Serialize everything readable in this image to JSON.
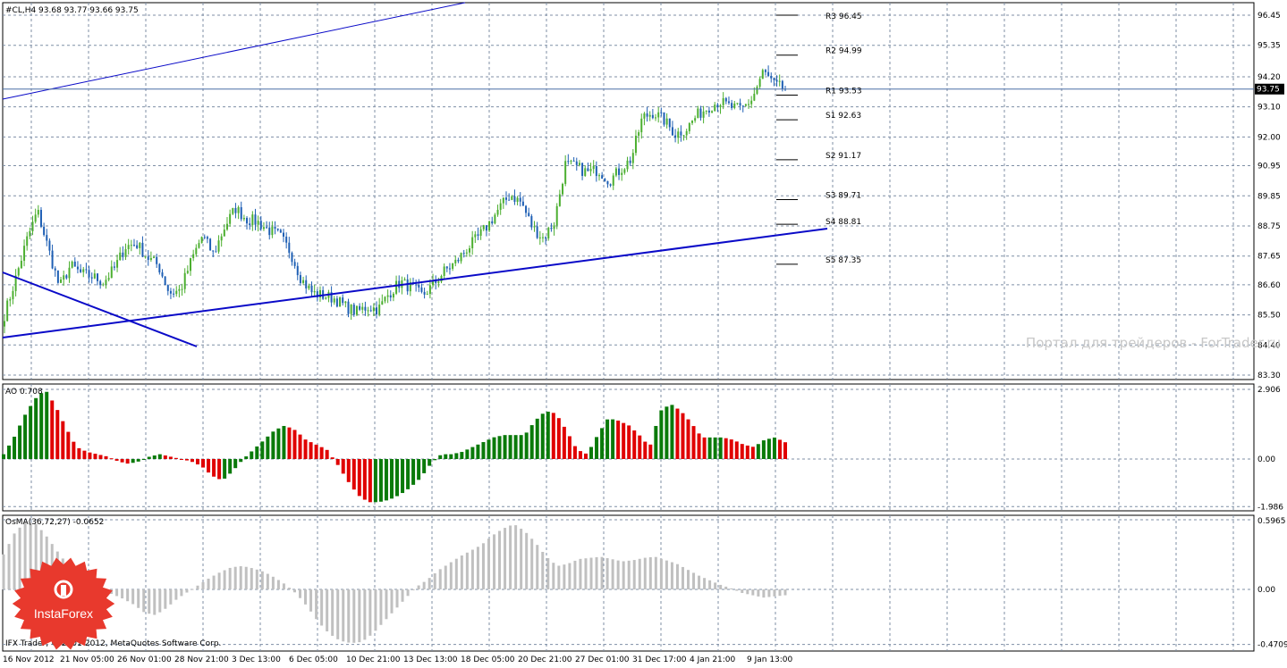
{
  "colors": {
    "background": "#ffffff",
    "grid": "#7f8fa6",
    "bull_candle": "#4caf30",
    "bear_candle": "#1e5fb4",
    "trendline": "#0a0ac8",
    "price_line": "#4a6fa5",
    "ao_up": "#0a7a0a",
    "ao_down": "#e00000",
    "osma": "#c0c0c0",
    "logo_red": "#e8392d"
  },
  "header": {
    "symbol_line": "#CL,H4  93.68 93.77 93.66 93.75",
    "ao_label": "AO 0.708",
    "osma_label": "OsMA(36,72,27) -0.0652",
    "copyright": "IFX Trader, © 2001-2012, MetaQuotes Software Corp.",
    "watermark": "Портал для трейдеров - ForTrader.ru",
    "logo_text": "InstaForex",
    "current_price": "93.75"
  },
  "chart_data": [
    {
      "type": "candlestick",
      "title": "#CL,H4",
      "ylim": [
        83.3,
        96.45
      ],
      "price_ticks": [
        "96.45",
        "95.35",
        "94.20",
        "93.10",
        "92.00",
        "90.95",
        "89.85",
        "88.75",
        "87.65",
        "86.60",
        "85.50",
        "84.40",
        "83.30"
      ],
      "x_tick_labels": [
        "16 Nov 2012",
        "21 Nov 05:00",
        "26 Nov 01:00",
        "28 Nov 21:00",
        "3 Dec 13:00",
        "6 Dec 05:00",
        "10 Dec 21:00",
        "13 Dec 13:00",
        "18 Dec 05:00",
        "20 Dec 21:00",
        "27 Dec 01:00",
        "31 Dec 17:00",
        "4 Jan 21:00",
        "9 Jan 13:00"
      ],
      "close_path": [
        85.5,
        86.8,
        88.2,
        89.3,
        87.9,
        86.5,
        87.3,
        87.0,
        86.9,
        86.7,
        87.2,
        88.0,
        88.1,
        87.6,
        87.3,
        86.3,
        86.4,
        87.5,
        88.4,
        87.7,
        88.7,
        89.4,
        89.0,
        88.9,
        88.6,
        88.4,
        87.8,
        86.8,
        86.3,
        86.2,
        86.1,
        85.8,
        85.6,
        85.8,
        85.7,
        86.3,
        86.7,
        86.5,
        86.2,
        86.6,
        87.1,
        87.4,
        87.9,
        88.3,
        88.8,
        89.4,
        89.9,
        89.6,
        88.7,
        88.3,
        88.9,
        91.0,
        90.9,
        90.7,
        90.8,
        90.4,
        90.8,
        91.2,
        92.7,
        92.9,
        92.6,
        92.1,
        92.3,
        92.8,
        93.1,
        93.3,
        93.1,
        93.0,
        93.4,
        94.4,
        93.9,
        93.75
      ],
      "pivots": [
        {
          "label": "R3",
          "value": 96.45,
          "text": "R3 96.45"
        },
        {
          "label": "R2",
          "value": 94.99,
          "text": "R2 94.99"
        },
        {
          "label": "R1",
          "value": 93.53,
          "text": "R1 93.53"
        },
        {
          "label": "S1",
          "value": 92.63,
          "text": "S1 92.63"
        },
        {
          "label": "S2",
          "value": 91.17,
          "text": "S2 91.17"
        },
        {
          "label": "S3",
          "value": 89.71,
          "text": "S3 89.71"
        },
        {
          "label": "S4",
          "value": 88.81,
          "text": "S4 88.81"
        },
        {
          "label": "S5",
          "value": 87.35,
          "text": "S5 87.35"
        }
      ]
    },
    {
      "type": "bar",
      "title": "AO",
      "ylim": [
        -1.986,
        2.906
      ],
      "ticks": [
        "2.906",
        "0.00",
        "-1.986"
      ],
      "path": [
        0.2,
        0.9,
        1.8,
        2.5,
        2.9,
        2.2,
        1.3,
        0.5,
        0.3,
        0.2,
        0.1,
        -0.1,
        -0.2,
        -0.1,
        0.1,
        0.2,
        0.1,
        0.0,
        -0.1,
        -0.3,
        -0.7,
        -0.9,
        -0.5,
        0.0,
        0.4,
        0.8,
        1.2,
        1.4,
        1.2,
        0.8,
        0.6,
        0.4,
        -0.2,
        -0.9,
        -1.5,
        -1.8,
        -1.8,
        -1.7,
        -1.5,
        -1.2,
        -0.8,
        -0.2,
        0.2,
        0.2,
        0.3,
        0.5,
        0.7,
        0.9,
        1.0,
        1.0,
        1.0,
        1.6,
        2.0,
        1.9,
        1.2,
        0.4,
        0.2,
        1.0,
        1.7,
        1.6,
        1.4,
        1.0,
        0.5,
        2.0,
        2.3,
        2.0,
        1.5,
        0.9,
        0.9,
        0.9,
        0.8,
        0.6,
        0.5,
        0.8,
        0.9,
        0.7
      ]
    },
    {
      "type": "bar",
      "title": "OsMA(36,72,27)",
      "ylim": [
        -0.4709,
        0.5965
      ],
      "ticks": [
        "0.5965",
        "0.00",
        "-0.4709"
      ],
      "path": [
        0.3,
        0.48,
        0.58,
        0.56,
        0.45,
        0.32,
        0.2,
        0.1,
        0.02,
        -0.02,
        -0.04,
        -0.08,
        -0.13,
        -0.2,
        -0.22,
        -0.16,
        -0.08,
        -0.02,
        0.04,
        0.1,
        0.15,
        0.19,
        0.2,
        0.18,
        0.15,
        0.1,
        0.04,
        -0.04,
        -0.15,
        -0.28,
        -0.38,
        -0.44,
        -0.46,
        -0.45,
        -0.38,
        -0.28,
        -0.18,
        -0.08,
        0.02,
        0.08,
        0.16,
        0.22,
        0.28,
        0.33,
        0.38,
        0.46,
        0.52,
        0.56,
        0.5,
        0.4,
        0.28,
        0.2,
        0.22,
        0.26,
        0.27,
        0.28,
        0.26,
        0.24,
        0.25,
        0.27,
        0.28,
        0.25,
        0.22,
        0.17,
        0.12,
        0.08,
        0.04,
        0.01,
        -0.03,
        -0.05,
        -0.07,
        -0.06,
        -0.05
      ]
    }
  ]
}
